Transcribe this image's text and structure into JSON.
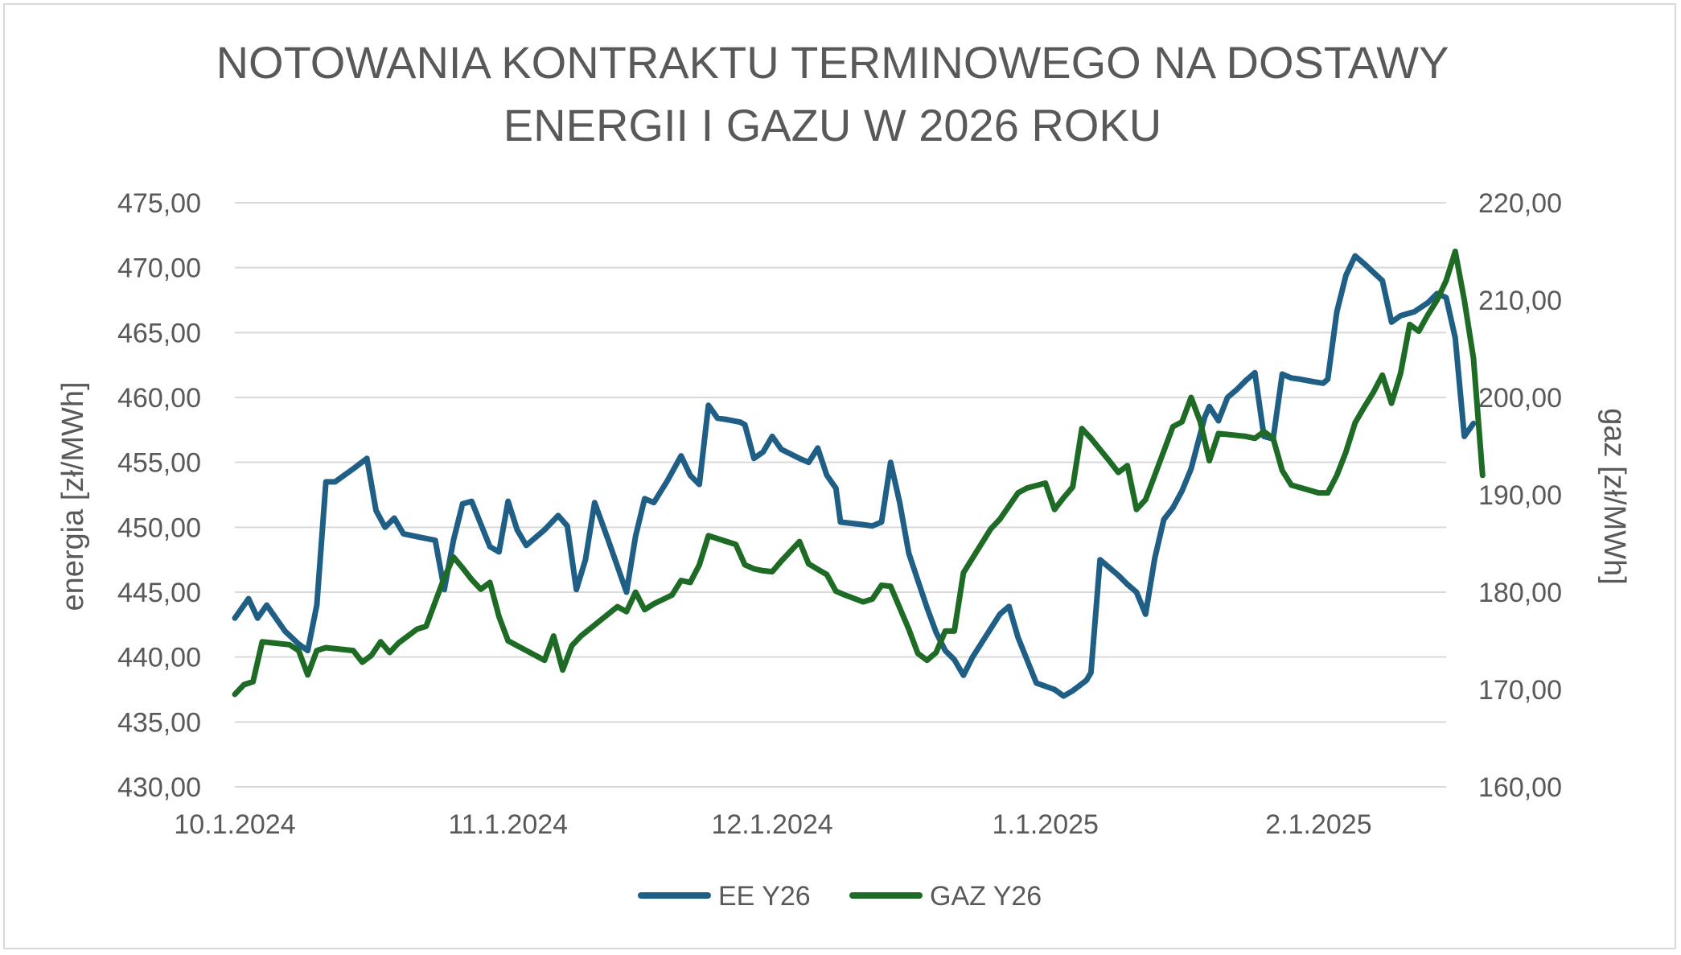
{
  "chart_data": {
    "type": "line",
    "title": [
      "NOTOWANIA KONTRAKTU TERMINOWEGO NA DOSTAWY",
      "ENERGII I GAZU W 2026 ROKU"
    ],
    "ylabel_left": "energia [zł/MWh]",
    "ylabel_right": "gaz [zł/MWh]",
    "ylim_left": [
      430,
      475
    ],
    "ylim_right": [
      160,
      220
    ],
    "y_ticks_left": [
      "430,00",
      "435,00",
      "440,00",
      "445,00",
      "450,00",
      "455,00",
      "460,00",
      "465,00",
      "470,00",
      "475,00"
    ],
    "y_ticks_right": [
      "160,00",
      "170,00",
      "180,00",
      "190,00",
      "200,00",
      "210,00",
      "220,00"
    ],
    "x_range": [
      0,
      133
    ],
    "x_ticks": [
      {
        "x": 0,
        "label": "10.1.2024"
      },
      {
        "x": 30,
        "label": "11.1.2024"
      },
      {
        "x": 59,
        "label": "12.1.2024"
      },
      {
        "x": 89,
        "label": "1.1.2025"
      },
      {
        "x": 119,
        "label": "2.1.2025"
      }
    ],
    "grid": true,
    "legend_position": "bottom",
    "series": [
      {
        "name": "EE Y26",
        "axis": "left",
        "color": "#1f5f86",
        "points": [
          [
            0,
            443
          ],
          [
            1.5,
            444.5
          ],
          [
            2.5,
            443
          ],
          [
            3.5,
            444
          ],
          [
            5.5,
            442
          ],
          [
            7,
            441
          ],
          [
            8,
            440.5
          ],
          [
            9,
            444
          ],
          [
            10,
            453.5
          ],
          [
            11,
            453.5
          ],
          [
            13,
            454.5
          ],
          [
            14.5,
            455.3
          ],
          [
            15.5,
            451.3
          ],
          [
            16.5,
            450
          ],
          [
            17.5,
            450.7
          ],
          [
            18.5,
            449.5
          ],
          [
            20.5,
            449.2
          ],
          [
            22,
            449
          ],
          [
            23,
            445.2
          ],
          [
            24,
            449
          ],
          [
            25,
            451.8
          ],
          [
            26,
            452
          ],
          [
            28,
            448.5
          ],
          [
            29,
            448.1
          ],
          [
            30,
            452
          ],
          [
            31,
            449.8
          ],
          [
            32,
            448.6
          ],
          [
            34,
            449.8
          ],
          [
            35.5,
            450.9
          ],
          [
            36.5,
            450.1
          ],
          [
            37.5,
            445.2
          ],
          [
            38.5,
            447.5
          ],
          [
            39.5,
            451.9
          ],
          [
            41,
            449
          ],
          [
            43,
            445
          ],
          [
            44,
            449.3
          ],
          [
            45,
            452.2
          ],
          [
            46,
            451.9
          ],
          [
            47.5,
            453.6
          ],
          [
            49,
            455.5
          ],
          [
            50,
            454
          ],
          [
            51,
            453.3
          ],
          [
            52,
            459.4
          ],
          [
            53,
            458.4
          ],
          [
            54,
            458.3
          ],
          [
            55.5,
            458.1
          ],
          [
            56,
            457.9
          ],
          [
            57,
            455.3
          ],
          [
            58,
            455.8
          ],
          [
            59,
            457
          ],
          [
            60,
            456
          ],
          [
            62,
            455.3
          ],
          [
            63,
            455
          ],
          [
            64,
            456.1
          ],
          [
            65,
            454
          ],
          [
            66,
            453
          ],
          [
            66.5,
            450.4
          ],
          [
            69,
            450.2
          ],
          [
            70,
            450.1
          ],
          [
            71,
            450.4
          ],
          [
            72,
            455
          ],
          [
            73,
            451.9
          ],
          [
            74,
            448
          ],
          [
            75,
            445.9
          ],
          [
            76,
            443.8
          ],
          [
            77,
            441.9
          ],
          [
            78,
            440.5
          ],
          [
            79,
            439.8
          ],
          [
            80,
            438.6
          ],
          [
            81,
            440
          ],
          [
            83,
            442.2
          ],
          [
            84,
            443.3
          ],
          [
            85,
            443.9
          ],
          [
            86,
            441.5
          ],
          [
            88,
            438
          ],
          [
            90,
            437.5
          ],
          [
            91,
            437
          ],
          [
            92,
            437.4
          ],
          [
            93.5,
            438.2
          ],
          [
            94,
            438.8
          ],
          [
            95,
            447.5
          ],
          [
            96,
            446.9
          ],
          [
            97,
            446.3
          ],
          [
            98,
            445.6
          ],
          [
            99,
            445
          ],
          [
            100,
            443.3
          ],
          [
            101,
            447.6
          ],
          [
            102,
            450.6
          ],
          [
            103,
            451.5
          ],
          [
            104,
            452.8
          ],
          [
            105,
            454.5
          ],
          [
            106.5,
            458.5
          ],
          [
            107,
            459.3
          ],
          [
            108,
            458.2
          ],
          [
            109,
            460
          ],
          [
            110,
            460.6
          ],
          [
            111,
            461.3
          ],
          [
            112,
            461.9
          ],
          [
            113,
            457
          ],
          [
            114,
            456.8
          ],
          [
            115,
            461.8
          ],
          [
            116,
            461.5
          ],
          [
            117,
            461.4
          ],
          [
            118.5,
            461.2
          ],
          [
            119.5,
            461.1
          ],
          [
            120,
            461.4
          ],
          [
            121,
            466.6
          ],
          [
            122,
            469.4
          ],
          [
            123,
            470.9
          ],
          [
            124,
            470.3
          ],
          [
            126,
            469
          ],
          [
            127,
            465.8
          ],
          [
            128,
            466.3
          ],
          [
            129.5,
            466.6
          ],
          [
            131,
            467.3
          ],
          [
            132,
            468
          ],
          [
            133,
            467.7
          ],
          [
            134,
            464.6
          ],
          [
            135,
            457
          ],
          [
            136,
            458
          ]
        ]
      },
      {
        "name": "GAZ Y26",
        "axis": "right",
        "color": "#1e6b26",
        "points": [
          [
            0,
            169.5
          ],
          [
            1,
            170.5
          ],
          [
            2,
            170.8
          ],
          [
            3,
            174.9
          ],
          [
            4,
            174.8
          ],
          [
            6,
            174.6
          ],
          [
            7,
            174
          ],
          [
            8,
            171.5
          ],
          [
            9,
            174
          ],
          [
            10,
            174.3
          ],
          [
            13,
            174
          ],
          [
            14,
            172.8
          ],
          [
            15,
            173.5
          ],
          [
            16,
            174.9
          ],
          [
            17,
            173.8
          ],
          [
            18,
            174.8
          ],
          [
            19,
            175.5
          ],
          [
            20,
            176.2
          ],
          [
            21,
            176.5
          ],
          [
            22,
            179
          ],
          [
            23,
            181.5
          ],
          [
            24,
            183.6
          ],
          [
            25,
            182.5
          ],
          [
            26,
            181.3
          ],
          [
            27,
            180.3
          ],
          [
            28,
            181
          ],
          [
            29,
            177.5
          ],
          [
            30,
            175
          ],
          [
            32,
            174
          ],
          [
            33,
            173.5
          ],
          [
            34,
            173
          ],
          [
            35,
            175.5
          ],
          [
            36,
            172
          ],
          [
            37,
            174.5
          ],
          [
            38,
            175.5
          ],
          [
            40,
            177
          ],
          [
            42,
            178.5
          ],
          [
            43,
            178
          ],
          [
            44,
            180
          ],
          [
            45,
            178.2
          ],
          [
            46,
            178.8
          ],
          [
            48,
            179.7
          ],
          [
            49,
            181.2
          ],
          [
            50,
            181
          ],
          [
            51,
            182.8
          ],
          [
            52,
            185.8
          ],
          [
            53,
            185.5
          ],
          [
            54,
            185.2
          ],
          [
            55,
            184.9
          ],
          [
            56,
            182.8
          ],
          [
            57,
            182.4
          ],
          [
            58,
            182.2
          ],
          [
            59,
            182.1
          ],
          [
            60,
            183.2
          ],
          [
            62,
            185.2
          ],
          [
            63,
            182.9
          ],
          [
            65,
            181.8
          ],
          [
            66,
            180.1
          ],
          [
            67,
            179.7
          ],
          [
            69,
            179
          ],
          [
            70,
            179.3
          ],
          [
            71,
            180.7
          ],
          [
            72,
            180.6
          ],
          [
            73,
            178.4
          ],
          [
            74,
            176.2
          ],
          [
            75,
            173.7
          ],
          [
            76,
            173
          ],
          [
            77,
            173.8
          ],
          [
            78,
            176
          ],
          [
            79,
            176
          ],
          [
            80,
            182
          ],
          [
            81,
            183.5
          ],
          [
            82,
            185
          ],
          [
            83,
            186.5
          ],
          [
            84,
            187.5
          ],
          [
            86,
            190.2
          ],
          [
            87,
            190.7
          ],
          [
            89,
            191.2
          ],
          [
            90,
            188.5
          ],
          [
            91,
            189.7
          ],
          [
            92,
            190.8
          ],
          [
            93,
            196.8
          ],
          [
            94,
            195.8
          ],
          [
            96,
            193.5
          ],
          [
            97,
            192.3
          ],
          [
            98,
            193
          ],
          [
            99,
            188.5
          ],
          [
            100,
            189.5
          ],
          [
            101,
            192
          ],
          [
            103,
            197
          ],
          [
            104,
            197.5
          ],
          [
            105,
            200
          ],
          [
            106,
            197.5
          ],
          [
            107,
            193.5
          ],
          [
            108,
            196.3
          ],
          [
            110,
            196.1
          ],
          [
            111,
            196
          ],
          [
            112,
            195.8
          ],
          [
            113,
            196.5
          ],
          [
            114,
            195.8
          ],
          [
            115,
            192.5
          ],
          [
            116,
            191
          ],
          [
            119,
            190.2
          ],
          [
            120,
            190.2
          ],
          [
            121,
            192
          ],
          [
            122,
            194.4
          ],
          [
            123,
            197.4
          ],
          [
            124,
            199
          ],
          [
            125,
            200.5
          ],
          [
            126,
            202.3
          ],
          [
            127,
            199.4
          ],
          [
            128,
            202.5
          ],
          [
            129,
            207.5
          ],
          [
            130,
            206.8
          ],
          [
            131,
            208.5
          ],
          [
            132,
            210
          ],
          [
            133,
            212
          ],
          [
            134,
            215
          ],
          [
            135,
            210
          ],
          [
            136,
            204
          ],
          [
            137,
            192
          ]
        ]
      }
    ]
  }
}
